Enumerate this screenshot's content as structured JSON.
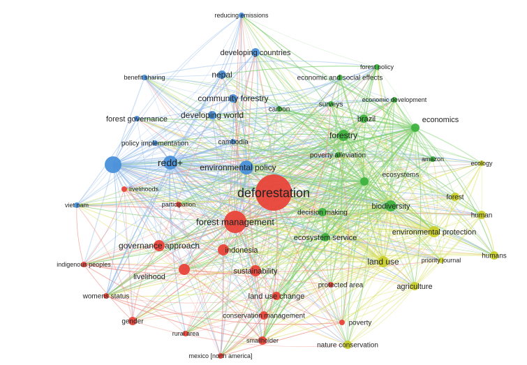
{
  "colors": {
    "red": "#e8443a",
    "green": "#3fb23f",
    "blue": "#4a90d9",
    "yellow": "#c9cf2a",
    "edge_red": "#f08a80",
    "edge_green": "#7fcf6f",
    "edge_blue": "#8fb8ea",
    "edge_yellow": "#dde26a"
  },
  "nodes": [
    {
      "id": "deforestation",
      "label": "deforestation",
      "cluster": "red",
      "weight": 10
    },
    {
      "id": "forest_management",
      "label": "forest management",
      "cluster": "red",
      "weight": 6
    },
    {
      "id": "governance_approach",
      "label": "governance approach",
      "cluster": "red",
      "weight": 3
    },
    {
      "id": "indonesia",
      "label": "indonesia",
      "cluster": "red",
      "weight": 3
    },
    {
      "id": "sustainability",
      "label": "sustainability",
      "cluster": "red",
      "weight": 3
    },
    {
      "id": "livelihood",
      "label": "livelihood",
      "cluster": "red",
      "weight": 3
    },
    {
      "id": "land_use_change",
      "label": "land use change",
      "cluster": "red",
      "weight": 2
    },
    {
      "id": "conservation_management",
      "label": "conservation management",
      "cluster": "red",
      "weight": 2
    },
    {
      "id": "smallholder",
      "label": "smallholder",
      "cluster": "red",
      "weight": 2
    },
    {
      "id": "gender",
      "label": "gender",
      "cluster": "red",
      "weight": 2
    },
    {
      "id": "womens_status",
      "label": "womens status",
      "cluster": "red",
      "weight": 1
    },
    {
      "id": "indigenous_peoples",
      "label": "indigenous peoples",
      "cluster": "red",
      "weight": 1
    },
    {
      "id": "livelihoods",
      "label": "livelihoods",
      "cluster": "red",
      "weight": 1
    },
    {
      "id": "participation",
      "label": "participation",
      "cluster": "red",
      "weight": 1
    },
    {
      "id": "rural_area",
      "label": "rural area",
      "cluster": "red",
      "weight": 1
    },
    {
      "id": "mexico",
      "label": "mexico [north america]",
      "cluster": "red",
      "weight": 1
    },
    {
      "id": "poverty",
      "label": "poverty",
      "cluster": "red",
      "weight": 1
    },
    {
      "id": "protected_area",
      "label": "protected area",
      "cluster": "red",
      "weight": 1
    },
    {
      "id": "forestry",
      "label": "forestry",
      "cluster": "green",
      "weight": 3
    },
    {
      "id": "brazil",
      "label": "brazil",
      "cluster": "green",
      "weight": 2
    },
    {
      "id": "economics",
      "label": "economics",
      "cluster": "green",
      "weight": 2
    },
    {
      "id": "economic_social_effects",
      "label": "economic and social effects",
      "cluster": "green",
      "weight": 1
    },
    {
      "id": "economic_development",
      "label": "economic development",
      "cluster": "green",
      "weight": 1
    },
    {
      "id": "surveys",
      "label": "surveys",
      "cluster": "green",
      "weight": 1
    },
    {
      "id": "carbon",
      "label": "carbon",
      "cluster": "green",
      "weight": 1
    },
    {
      "id": "poverty_alleviation",
      "label": "poverty alleviation",
      "cluster": "green",
      "weight": 1
    },
    {
      "id": "ecosystems",
      "label": "ecosystems",
      "cluster": "green",
      "weight": 2
    },
    {
      "id": "biodiversity",
      "label": "biodiversity",
      "cluster": "green",
      "weight": 3
    },
    {
      "id": "decision_making",
      "label": "decision making",
      "cluster": "green",
      "weight": 2
    },
    {
      "id": "ecosystem_service",
      "label": "ecosystem service",
      "cluster": "green",
      "weight": 2
    },
    {
      "id": "forest_policy",
      "label": "forest policy",
      "cluster": "green",
      "weight": 1
    },
    {
      "id": "amazon",
      "label": "amazon",
      "cluster": "green",
      "weight": 1
    },
    {
      "id": "redd",
      "label": "redd+",
      "cluster": "blue",
      "weight": 4
    },
    {
      "id": "environmental_policy",
      "label": "environmental policy",
      "cluster": "blue",
      "weight": 4
    },
    {
      "id": "nepal",
      "label": "nepal",
      "cluster": "blue",
      "weight": 2
    },
    {
      "id": "community_forestry",
      "label": "community forestry",
      "cluster": "blue",
      "weight": 2
    },
    {
      "id": "developing_world",
      "label": "developing world",
      "cluster": "blue",
      "weight": 2
    },
    {
      "id": "developing_countries",
      "label": "developing countries",
      "cluster": "blue",
      "weight": 2
    },
    {
      "id": "reducing_emissions",
      "label": "reducing emissions",
      "cluster": "blue",
      "weight": 1
    },
    {
      "id": "benefit_sharing",
      "label": "benefit sharing",
      "cluster": "blue",
      "weight": 1
    },
    {
      "id": "forest_governance",
      "label": "forest governance",
      "cluster": "blue",
      "weight": 1
    },
    {
      "id": "policy_implementation",
      "label": "policy implementation",
      "cluster": "blue",
      "weight": 1
    },
    {
      "id": "cambodia",
      "label": "cambodia",
      "cluster": "blue",
      "weight": 1
    },
    {
      "id": "viet_nam",
      "label": "viet nam",
      "cluster": "blue",
      "weight": 1
    },
    {
      "id": "blue_hub",
      "label": "",
      "cluster": "blue",
      "weight": 5
    },
    {
      "id": "environmental_protection",
      "label": "environmental protection",
      "cluster": "yellow",
      "weight": 3
    },
    {
      "id": "land_use",
      "label": "land use",
      "cluster": "yellow",
      "weight": 3
    },
    {
      "id": "agriculture",
      "label": "agriculture",
      "cluster": "yellow",
      "weight": 2
    },
    {
      "id": "nature_conservation",
      "label": "nature conservation",
      "cluster": "yellow",
      "weight": 2
    },
    {
      "id": "forest",
      "label": "forest",
      "cluster": "yellow",
      "weight": 2
    },
    {
      "id": "human",
      "label": "human",
      "cluster": "yellow",
      "weight": 2
    },
    {
      "id": "humans",
      "label": "humans",
      "cluster": "yellow",
      "weight": 2
    },
    {
      "id": "ecology",
      "label": "ecology",
      "cluster": "yellow",
      "weight": 1
    },
    {
      "id": "priority_journal",
      "label": "priority journal",
      "cluster": "yellow",
      "weight": 1
    }
  ]
}
